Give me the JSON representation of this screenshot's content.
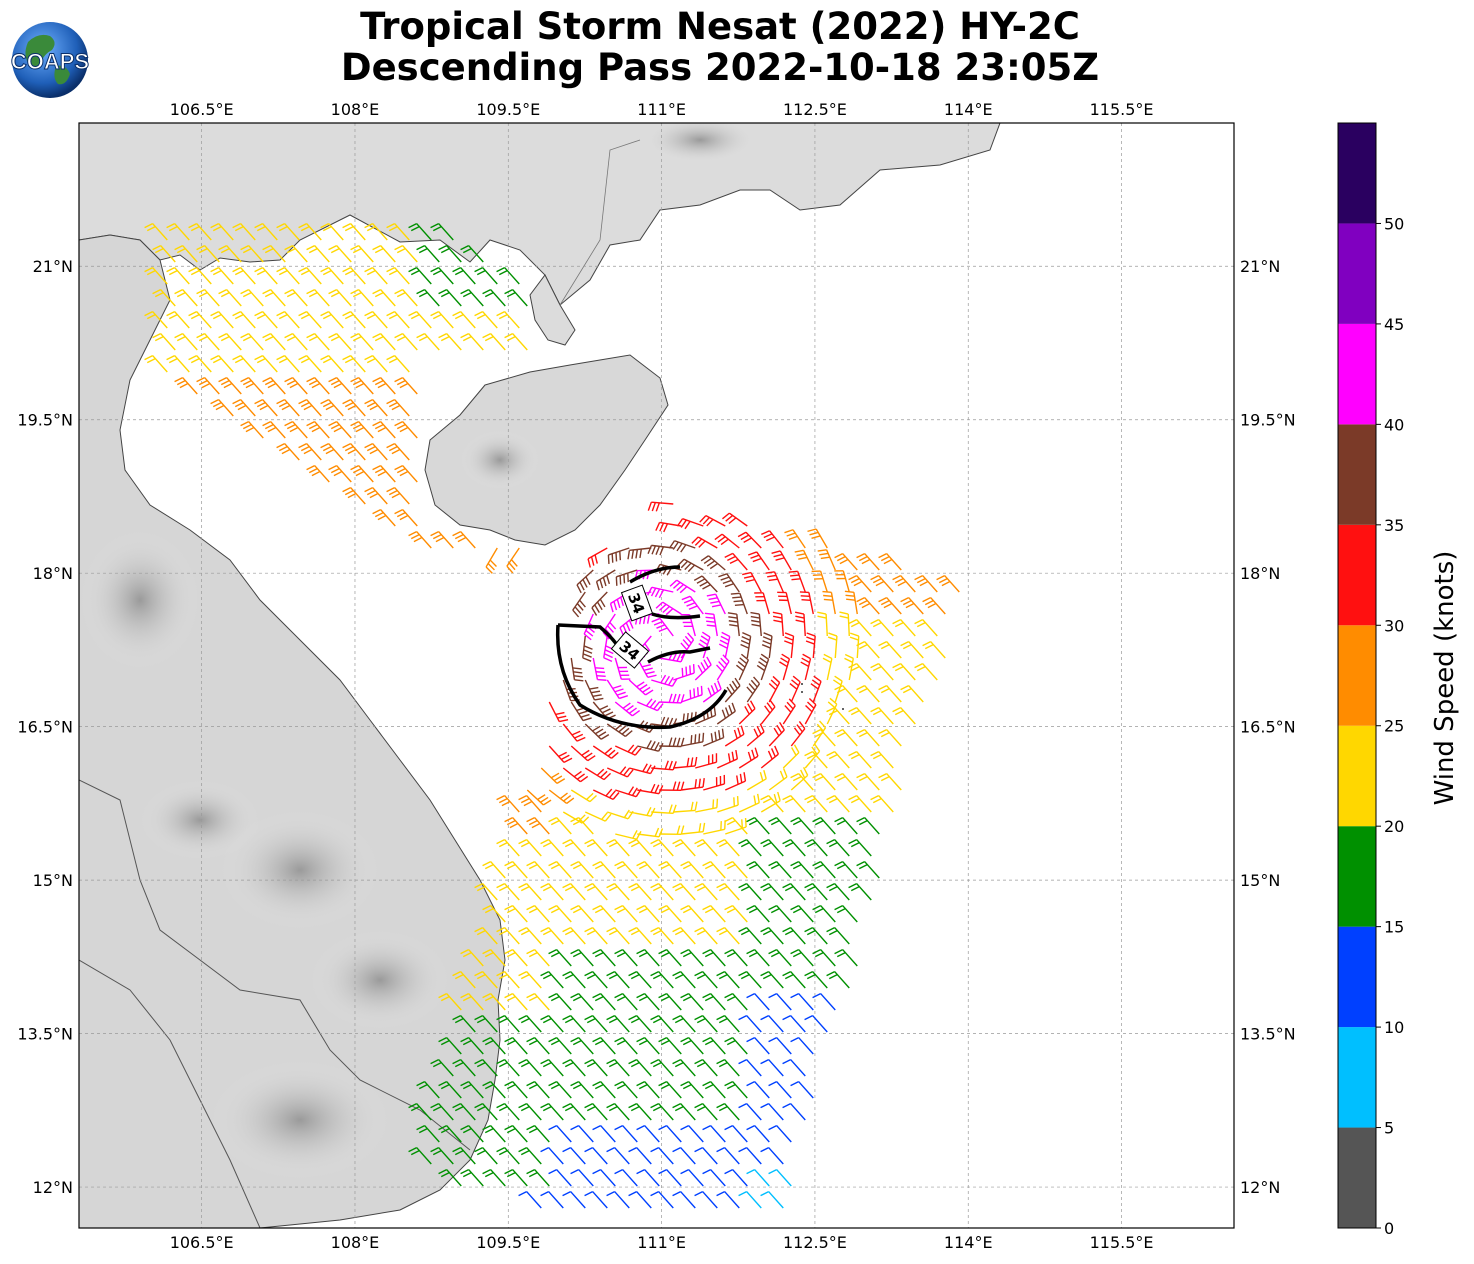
{
  "title": {
    "line1": "Tropical Storm Nesat (2022) HY-2C",
    "line2": "Descending Pass 2022-10-18 23:05Z"
  },
  "logo": {
    "text": "COAPS",
    "icon": "coaps-globe-logo"
  },
  "map": {
    "lon_range": [
      105.3,
      116.6
    ],
    "lat_range": [
      11.6,
      22.4
    ],
    "lon_ticks": [
      106.5,
      108,
      109.5,
      111,
      112.5,
      114,
      115.5
    ],
    "lon_tick_labels": [
      "106.5°E",
      "108°E",
      "109.5°E",
      "111°E",
      "112.5°E",
      "114°E",
      "115.5°E"
    ],
    "lat_ticks": [
      12,
      13.5,
      15,
      16.5,
      18,
      19.5,
      21
    ],
    "lat_tick_labels": [
      "12°N",
      "13.5°N",
      "15°N",
      "16.5°N",
      "18°N",
      "19.5°N",
      "21°N"
    ],
    "gridlines": true,
    "storm_center": {
      "lon": 111.0,
      "lat": 17.3
    },
    "wind_radii_contour": {
      "label": "34",
      "unit": "kt"
    }
  },
  "colorbar": {
    "label": "Wind Speed (knots)",
    "tick_labels": [
      "0",
      "5",
      "10",
      "15",
      "20",
      "25",
      "30",
      "35",
      "40",
      "45",
      "50"
    ],
    "bins": [
      {
        "min": 0,
        "max": 5,
        "color": "#555555"
      },
      {
        "min": 5,
        "max": 10,
        "color": "#00bfff"
      },
      {
        "min": 10,
        "max": 15,
        "color": "#0040ff"
      },
      {
        "min": 15,
        "max": 20,
        "color": "#009000"
      },
      {
        "min": 20,
        "max": 25,
        "color": "#ffd700"
      },
      {
        "min": 25,
        "max": 30,
        "color": "#ff8c00"
      },
      {
        "min": 30,
        "max": 35,
        "color": "#ff1010"
      },
      {
        "min": 35,
        "max": 40,
        "color": "#7b3a28"
      },
      {
        "min": 40,
        "max": 45,
        "color": "#ff00ff"
      },
      {
        "min": 45,
        "max": 50,
        "color": "#8000c0"
      },
      {
        "min": 50,
        "max": 55,
        "color": "#2a0060"
      }
    ]
  }
}
